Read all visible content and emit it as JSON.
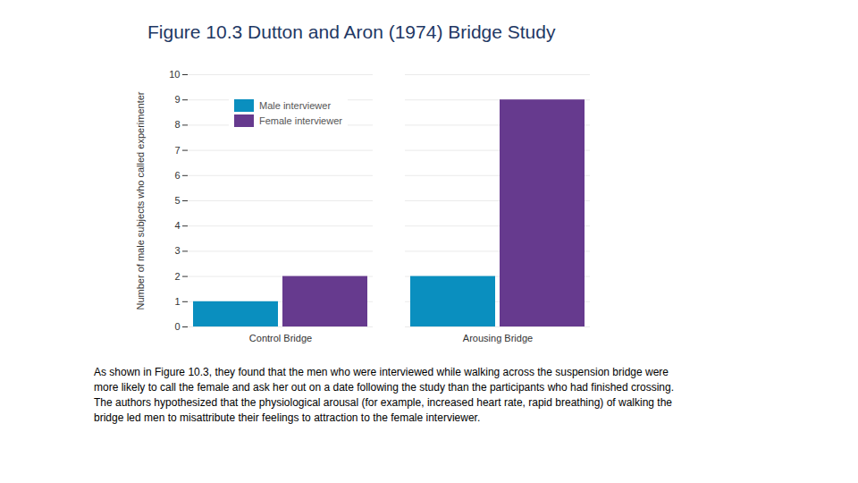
{
  "chart_data": {
    "type": "bar",
    "title": "Figure 10.3 Dutton and Aron (1974) Bridge Study",
    "y_label": "Number of male subjects who called experimenter",
    "categories": [
      "Control Bridge",
      "Arousing Bridge"
    ],
    "series": [
      {
        "name": "Male interviewer",
        "color": "#0a8fbf",
        "values": [
          1,
          2
        ]
      },
      {
        "name": "Female interviewer",
        "color": "#663a8e",
        "values": [
          2,
          9
        ]
      }
    ],
    "ylim": [
      0,
      10
    ],
    "yticks": [
      0,
      1,
      2,
      3,
      4,
      5,
      6,
      7,
      8,
      9,
      10
    ],
    "grid": true,
    "legend": "top-left",
    "caption": "As shown in Figure 10.3, they found that the men who were interviewed while walking across the suspension bridge were more likely to call the female and ask her out on a date following the study than the participants who had finished crossing. The authors hypothesized that the physiological arousal (for example, increased heart rate, rapid breathing) of walking the bridge led men to misattribute their feelings to attraction to the female interviewer."
  }
}
